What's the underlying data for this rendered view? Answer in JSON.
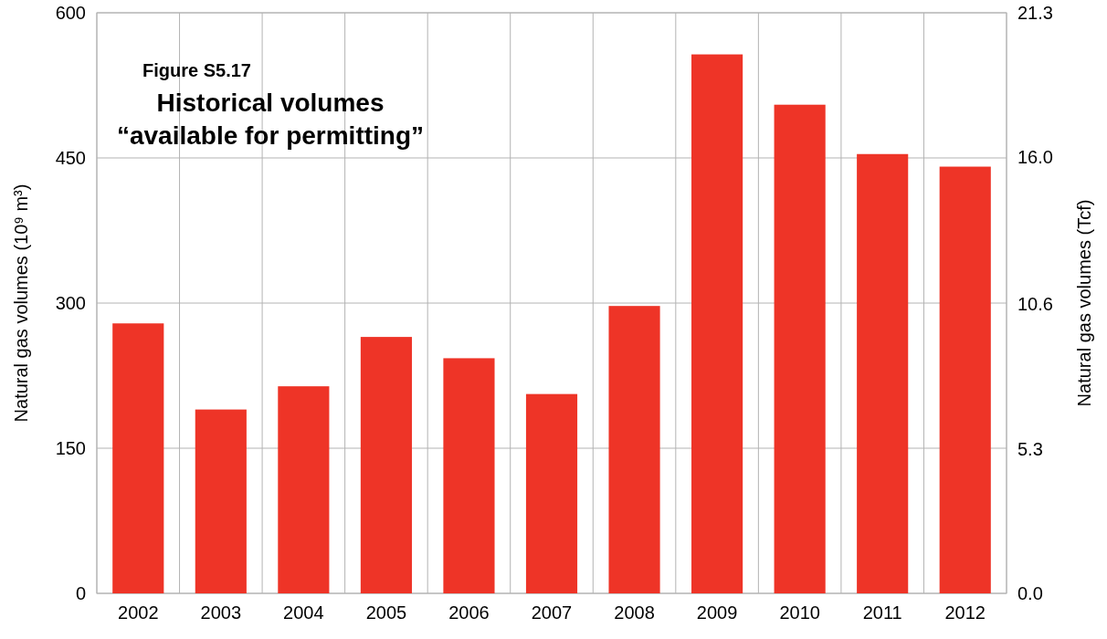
{
  "chart_data": {
    "type": "bar",
    "subtitle": "Figure S5.17",
    "title": "Historical volumes\n“available for permitting”",
    "ylabel": "Natural gas volumes (10⁹ m³)",
    "y2label": "Natural gas volumes (Tcf)",
    "categories": [
      "2002",
      "2003",
      "2004",
      "2005",
      "2006",
      "2007",
      "2008",
      "2009",
      "2010",
      "2011",
      "2012"
    ],
    "values": [
      279,
      190,
      214,
      265,
      243,
      206,
      297,
      557,
      505,
      454,
      441
    ],
    "color": "#ee3427",
    "ylim": [
      0,
      600
    ],
    "yticks": [
      0,
      150,
      300,
      450,
      600
    ],
    "y2lim": [
      0,
      21.3
    ],
    "y2ticks": [
      {
        "value": 0,
        "label": "0.0"
      },
      {
        "value": 5.3,
        "label": "5.3"
      },
      {
        "value": 10.6,
        "label": "10.6"
      },
      {
        "value": 16,
        "label": "16.0"
      },
      {
        "value": 21.3,
        "label": "21.3"
      }
    ],
    "grid": true
  }
}
